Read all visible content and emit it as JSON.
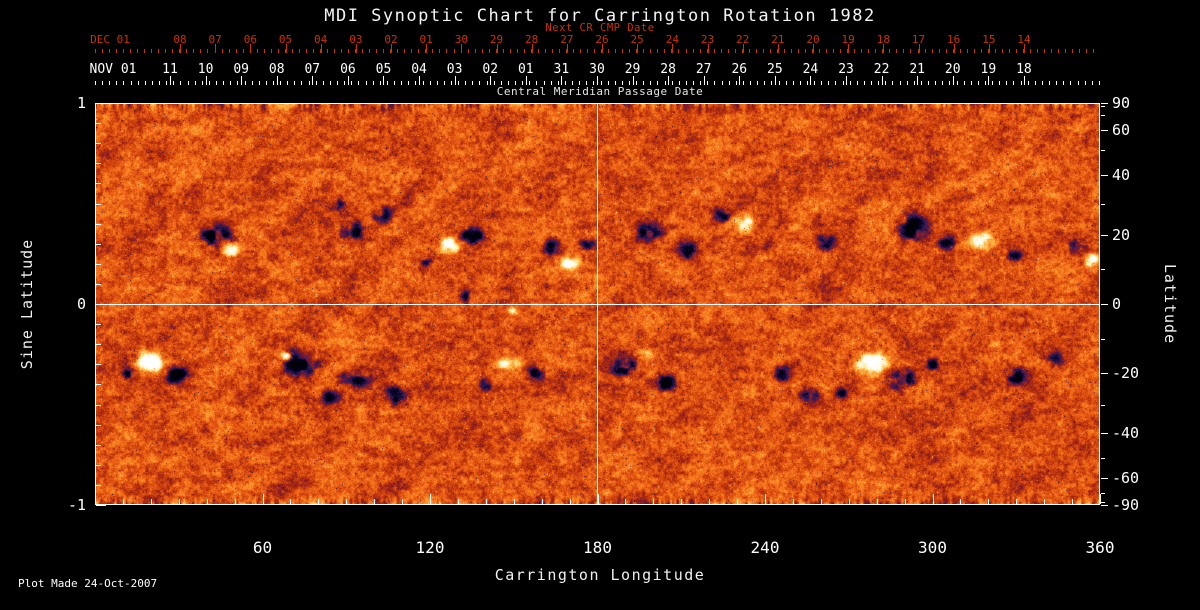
{
  "title": "MDI Synoptic Chart for Carrington Rotation 1982",
  "footer": {
    "plot_made": "Plot Made 24-Oct-2007"
  },
  "chart_data": {
    "type": "heatmap",
    "title": "MDI Synoptic Chart for Carrington Rotation 1982",
    "xlabel": "Carrington Longitude",
    "ylabel_left": "Sine Latitude",
    "ylabel_right": "Latitude",
    "xlim": [
      0,
      360
    ],
    "ylim": [
      -1,
      1
    ],
    "x_ticks": [
      60,
      120,
      180,
      240,
      300,
      360
    ],
    "left_ticks": [
      1,
      0,
      -1
    ],
    "right_ticks": [
      90,
      60,
      40,
      20,
      0,
      -20,
      -40,
      -60,
      -90
    ],
    "grid_lines": {
      "vertical_at_longitude": 180,
      "horizontal_at_sine_latitude": 0
    },
    "top_axes": {
      "next_cr": {
        "label": "Next CR CMP Date",
        "month_label": "DEC 01",
        "dates": [
          "08",
          "07",
          "06",
          "05",
          "04",
          "03",
          "02",
          "01",
          "30",
          "29",
          "28",
          "27",
          "26",
          "25",
          "24",
          "23",
          "22",
          "21",
          "20",
          "19",
          "18",
          "17",
          "16",
          "15",
          "14"
        ]
      },
      "cmp": {
        "label": "Central Meridian Passage Date",
        "month_label": "NOV 01",
        "dates": [
          "11",
          "10",
          "09",
          "08",
          "07",
          "06",
          "05",
          "04",
          "03",
          "02",
          "01",
          "31",
          "30",
          "29",
          "28",
          "27",
          "26",
          "25",
          "24",
          "23",
          "22",
          "21",
          "20",
          "19",
          "18"
        ]
      }
    },
    "colors": {
      "background": "#000000",
      "axis": "#ffffff",
      "red_axis": "#cc3300",
      "cmp_label": "#e4e4e4",
      "map_base": "#de4e10",
      "negative_polarity": "#0a0630",
      "positive_polarity": "#ffffff"
    },
    "palette_stops": [
      [
        -1.3,
        0,
        0,
        8
      ],
      [
        -0.9,
        10,
        6,
        46
      ],
      [
        -0.6,
        44,
        28,
        92
      ],
      [
        -0.42,
        96,
        24,
        72
      ],
      [
        -0.28,
        140,
        28,
        28
      ],
      [
        -0.12,
        190,
        52,
        12
      ],
      [
        0,
        222,
        78,
        16
      ],
      [
        0.12,
        242,
        106,
        24
      ],
      [
        0.28,
        252,
        146,
        40
      ],
      [
        0.48,
        255,
        196,
        84
      ],
      [
        0.7,
        255,
        232,
        156
      ],
      [
        0.95,
        255,
        250,
        225
      ],
      [
        1.4,
        255,
        255,
        255
      ]
    ],
    "active_regions": [
      [
        43,
        0.34,
        7,
        0.07,
        -1,
        1.5
      ],
      [
        49,
        0.27,
        4,
        0.04,
        1,
        1.0
      ],
      [
        93,
        0.36,
        6,
        0.06,
        -1,
        1.3
      ],
      [
        103,
        0.44,
        4,
        0.05,
        -1,
        1.1
      ],
      [
        86,
        0.5,
        4,
        0.04,
        -1,
        0.9
      ],
      [
        127,
        0.3,
        4,
        0.05,
        1,
        1.3
      ],
      [
        135,
        0.34,
        5,
        0.05,
        -1,
        1.4
      ],
      [
        118,
        0.22,
        3,
        0.04,
        -1,
        0.9
      ],
      [
        164,
        0.28,
        4,
        0.05,
        -1,
        1.3
      ],
      [
        170,
        0.21,
        4,
        0.04,
        1,
        1.3
      ],
      [
        176,
        0.3,
        3,
        0.03,
        -1,
        1.0
      ],
      [
        199,
        0.36,
        6,
        0.06,
        -1,
        1.4
      ],
      [
        212,
        0.27,
        4,
        0.05,
        -1,
        1.1
      ],
      [
        232,
        0.4,
        5,
        0.05,
        1,
        1.7
      ],
      [
        224,
        0.44,
        4,
        0.04,
        -1,
        1.1
      ],
      [
        241,
        0.3,
        3,
        0.04,
        -1,
        0.9
      ],
      [
        262,
        0.31,
        4,
        0.05,
        -1,
        1.2
      ],
      [
        293,
        0.38,
        7,
        0.07,
        -1,
        1.5
      ],
      [
        305,
        0.3,
        4,
        0.05,
        -1,
        1.1
      ],
      [
        318,
        0.31,
        5,
        0.05,
        1,
        1.6
      ],
      [
        329,
        0.25,
        4,
        0.04,
        -1,
        1.0
      ],
      [
        352,
        0.3,
        4,
        0.05,
        -1,
        1.2
      ],
      [
        357,
        0.21,
        3,
        0.05,
        1,
        1.4
      ],
      [
        20,
        -0.28,
        6,
        0.06,
        1,
        1.8
      ],
      [
        29,
        -0.35,
        5,
        0.05,
        -1,
        1.3
      ],
      [
        12,
        -0.35,
        3,
        0.04,
        -1,
        1.0
      ],
      [
        73,
        -0.29,
        7,
        0.07,
        -1,
        1.5
      ],
      [
        68,
        -0.25,
        3,
        0.03,
        1,
        1.2
      ],
      [
        93,
        -0.37,
        6,
        0.06,
        -1,
        1.4
      ],
      [
        107,
        -0.45,
        5,
        0.05,
        -1,
        1.3
      ],
      [
        84,
        -0.46,
        4,
        0.04,
        -1,
        1.0
      ],
      [
        147,
        -0.29,
        5,
        0.04,
        1,
        1.4
      ],
      [
        157,
        -0.35,
        4,
        0.05,
        -1,
        1.2
      ],
      [
        140,
        -0.4,
        3,
        0.04,
        -1,
        0.9
      ],
      [
        189,
        -0.3,
        6,
        0.06,
        -1,
        1.4
      ],
      [
        204,
        -0.39,
        5,
        0.05,
        -1,
        1.3
      ],
      [
        197,
        -0.24,
        3,
        0.03,
        1,
        1.0
      ],
      [
        246,
        -0.34,
        4,
        0.05,
        -1,
        1.2
      ],
      [
        256,
        -0.45,
        4,
        0.04,
        -1,
        1.1
      ],
      [
        278,
        -0.29,
        6,
        0.06,
        1,
        2.0
      ],
      [
        289,
        -0.38,
        5,
        0.06,
        -1,
        1.4
      ],
      [
        268,
        -0.43,
        4,
        0.04,
        -1,
        1.1
      ],
      [
        300,
        -0.3,
        3,
        0.04,
        -1,
        1.0
      ],
      [
        330,
        -0.35,
        5,
        0.05,
        -1,
        1.2
      ],
      [
        344,
        -0.27,
        4,
        0.04,
        -1,
        1.0
      ],
      [
        133,
        0.04,
        3,
        0.04,
        -1,
        0.9
      ],
      [
        150,
        -0.03,
        3,
        0.03,
        1,
        0.9
      ],
      [
        160,
        0.1,
        3,
        0.03,
        -1,
        0.8
      ]
    ]
  }
}
